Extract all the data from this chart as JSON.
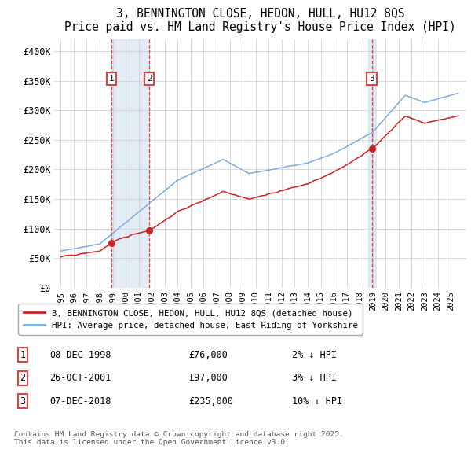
{
  "title": "3, BENNINGTON CLOSE, HEDON, HULL, HU12 8QS",
  "subtitle": "Price paid vs. HM Land Registry's House Price Index (HPI)",
  "ylim": [
    0,
    420000
  ],
  "yticks": [
    0,
    50000,
    100000,
    150000,
    200000,
    250000,
    300000,
    350000,
    400000
  ],
  "ytick_labels": [
    "£0",
    "£50K",
    "£100K",
    "£150K",
    "£200K",
    "£250K",
    "£300K",
    "£350K",
    "£400K"
  ],
  "sale_times": [
    1998.92,
    2001.82,
    2018.93
  ],
  "sale_prices_val": [
    76000,
    97000,
    235000
  ],
  "sale_dates": [
    "08-DEC-1998",
    "26-OCT-2001",
    "07-DEC-2018"
  ],
  "sale_prices": [
    "£76,000",
    "£97,000",
    "£235,000"
  ],
  "sale_hpi_diff": [
    "2% ↓ HPI",
    "3% ↓ HPI",
    "10% ↓ HPI"
  ],
  "vline_color": "#dd4444",
  "shade_color": "#ccdded",
  "price_line_color": "#cc2222",
  "hpi_line_color": "#7aace0",
  "legend1_label": "3, BENNINGTON CLOSE, HEDON, HULL, HU12 8QS (detached house)",
  "legend2_label": "HPI: Average price, detached house, East Riding of Yorkshire",
  "footer": "Contains HM Land Registry data © Crown copyright and database right 2025.\nThis data is licensed under the Open Government Licence v3.0.",
  "background_color": "#ffffff",
  "grid_color": "#cccccc",
  "xlim_start": 1994.5,
  "xlim_end": 2026.2,
  "xticks": [
    1995,
    1996,
    1997,
    1998,
    1999,
    2000,
    2001,
    2002,
    2003,
    2004,
    2005,
    2006,
    2007,
    2008,
    2009,
    2010,
    2011,
    2012,
    2013,
    2014,
    2015,
    2016,
    2017,
    2018,
    2019,
    2020,
    2021,
    2022,
    2023,
    2024,
    2025
  ]
}
